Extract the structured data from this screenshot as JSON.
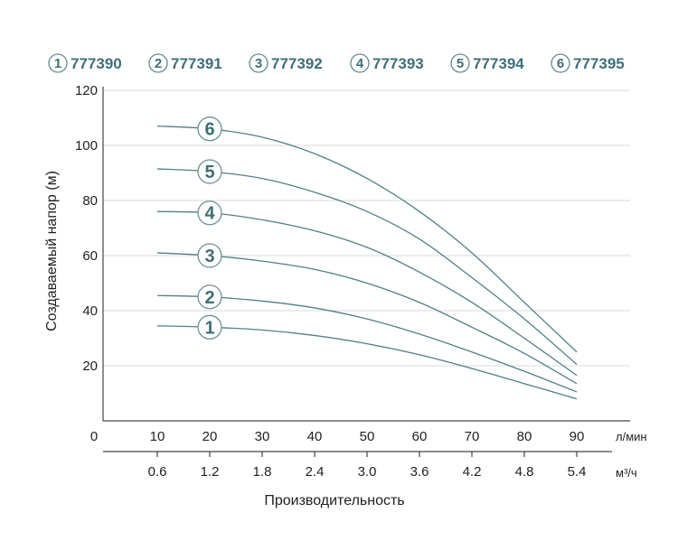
{
  "chart_data": {
    "type": "line",
    "ylabel": "Создаваемый напор (м)",
    "xlabel": "Производительность",
    "x_unit_primary": "л/мин",
    "x_unit_secondary_html": "м³/ч",
    "ylim": [
      0,
      120
    ],
    "y_ticks": [
      "20",
      "40",
      "60",
      "80",
      "100",
      "120"
    ],
    "x_ticks_primary": [
      "0",
      "10",
      "20",
      "30",
      "40",
      "50",
      "60",
      "70",
      "80",
      "90"
    ],
    "x_ticks_secondary": [
      "0.6",
      "1.2",
      "1.8",
      "2.4",
      "3.0",
      "3.6",
      "4.2",
      "4.8",
      "5.4"
    ],
    "grid": "horizontal",
    "legend_position": "top",
    "series": [
      {
        "name": "777390",
        "badge": "1",
        "x": [
          10,
          20,
          30,
          40,
          50,
          60,
          70,
          80,
          90
        ],
        "y": [
          34.5,
          34,
          33,
          31,
          28,
          24,
          19,
          13.5,
          8
        ]
      },
      {
        "name": "777391",
        "badge": "2",
        "x": [
          10,
          20,
          30,
          40,
          50,
          60,
          70,
          80,
          90
        ],
        "y": [
          45.5,
          45,
          43.5,
          41,
          37,
          31.5,
          25,
          18,
          10.5
        ]
      },
      {
        "name": "777392",
        "badge": "3",
        "x": [
          10,
          20,
          30,
          40,
          50,
          60,
          70,
          80,
          90
        ],
        "y": [
          61,
          60,
          58,
          55,
          50,
          43,
          34,
          24.5,
          13.5
        ]
      },
      {
        "name": "777393",
        "badge": "4",
        "x": [
          10,
          20,
          30,
          40,
          50,
          60,
          70,
          80,
          90
        ],
        "y": [
          76,
          75.5,
          73,
          69,
          63,
          54,
          43,
          30,
          16.5
        ]
      },
      {
        "name": "777394",
        "badge": "5",
        "x": [
          10,
          20,
          30,
          40,
          50,
          60,
          70,
          80,
          90
        ],
        "y": [
          91.5,
          90.5,
          88,
          83,
          76,
          66,
          52,
          37,
          20.5
        ]
      },
      {
        "name": "777395",
        "badge": "6",
        "x": [
          10,
          20,
          30,
          40,
          50,
          60,
          70,
          80,
          90
        ],
        "y": [
          107,
          106,
          103,
          97,
          88,
          76,
          61,
          43,
          25
        ]
      }
    ],
    "colors": {
      "curve": "#4e8088",
      "badge": "#3f6f78"
    }
  }
}
